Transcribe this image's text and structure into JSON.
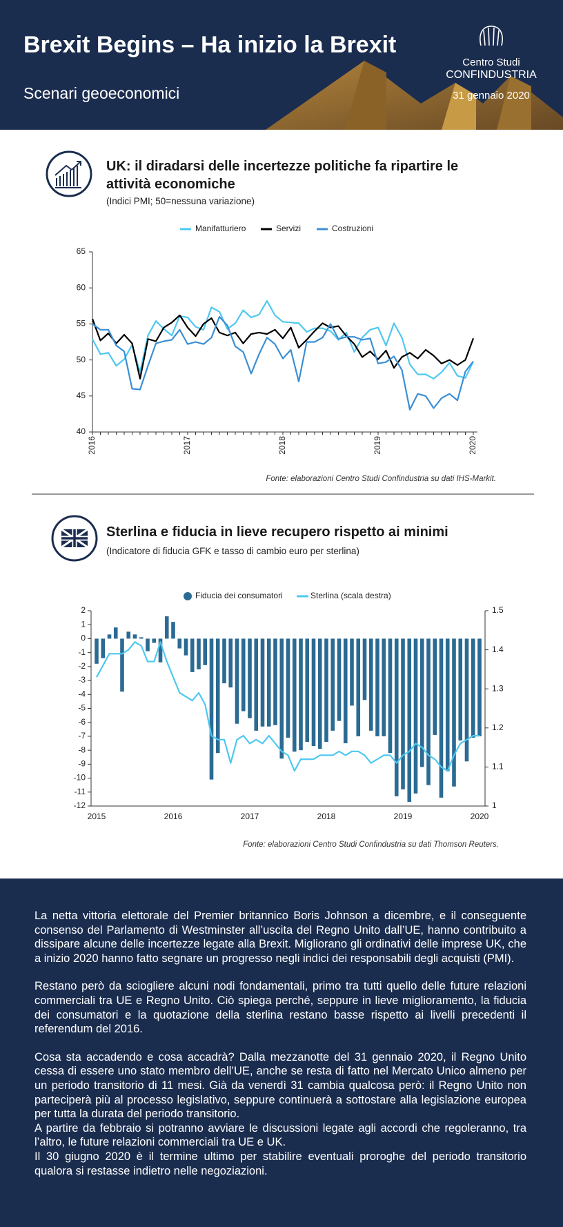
{
  "header": {
    "title": "Brexit Begins – Ha inizio la Brexit",
    "subtitle": "Scenari geoeconomici",
    "logo_line1": "Centro Studi",
    "logo_line2": "CONFINDUSTRIA",
    "date": "31 gennaio 2020"
  },
  "chart_data": [
    {
      "type": "line",
      "title": "UK: il diradarsi delle incertezze politiche fa ripartire le attività economiche",
      "subtitle": "(Indici PMI; 50=nessuna variazione)",
      "source": "Fonte: elaborazioni Centro Studi Confindustria su dati IHS-Markit.",
      "categories": [
        "2016",
        null,
        null,
        null,
        null,
        null,
        null,
        null,
        null,
        null,
        null,
        null,
        "2017",
        null,
        null,
        null,
        null,
        null,
        null,
        null,
        null,
        null,
        null,
        null,
        "2018",
        null,
        null,
        null,
        null,
        null,
        null,
        null,
        null,
        null,
        null,
        null,
        "2019",
        null,
        null,
        null,
        null,
        null,
        null,
        null,
        null,
        null,
        null,
        null,
        "2020"
      ],
      "ylim": [
        40,
        65
      ],
      "yticks": [
        40,
        45,
        50,
        55,
        60,
        65
      ],
      "series": [
        {
          "name": "Manifatturiero",
          "color": "#4fc8ef",
          "values": [
            52.9,
            50.8,
            51.0,
            49.2,
            50.1,
            52.1,
            48.3,
            53.4,
            55.4,
            54.3,
            53.4,
            56.1,
            55.9,
            54.6,
            54.2,
            57.3,
            56.7,
            54.3,
            55.1,
            56.9,
            55.9,
            56.3,
            58.2,
            56.2,
            55.3,
            55.2,
            55.1,
            53.9,
            54.4,
            54.4,
            54.0,
            52.8,
            53.8,
            51.1,
            53.1,
            54.2,
            54.5,
            52.0,
            55.1,
            53.1,
            49.4,
            48.0,
            48.0,
            47.4,
            48.3,
            49.6,
            47.8,
            47.5,
            49.8
          ]
        },
        {
          "name": "Servizi",
          "color": "#000000",
          "values": [
            55.7,
            52.7,
            53.7,
            52.3,
            53.5,
            52.3,
            47.4,
            52.9,
            52.6,
            54.5,
            55.2,
            56.2,
            54.5,
            53.3,
            55.0,
            55.8,
            53.8,
            53.4,
            53.8,
            52.3,
            53.6,
            53.8,
            53.6,
            54.2,
            53.0,
            54.5,
            51.7,
            52.8,
            54.0,
            55.1,
            54.5,
            54.7,
            53.3,
            52.2,
            50.4,
            51.2,
            50.1,
            51.3,
            48.9,
            50.4,
            51.0,
            50.2,
            51.4,
            50.6,
            49.5,
            50.0,
            49.3,
            50.0,
            53.0
          ]
        },
        {
          "name": "Costruzioni",
          "color": "#3b8fd4",
          "values": [
            55.0,
            54.2,
            54.2,
            52.0,
            51.2,
            46.0,
            45.9,
            49.2,
            52.3,
            52.6,
            52.8,
            54.2,
            52.2,
            52.5,
            52.2,
            53.1,
            56.0,
            54.8,
            51.9,
            51.1,
            48.1,
            50.8,
            53.1,
            52.2,
            50.2,
            51.4,
            47.0,
            52.5,
            52.5,
            53.1,
            55.0,
            52.9,
            53.2,
            53.2,
            52.8,
            53.0,
            49.5,
            49.7,
            50.5,
            48.6,
            43.1,
            45.3,
            45.0,
            43.3,
            44.7,
            45.3,
            44.4,
            48.4,
            49.8
          ]
        }
      ]
    },
    {
      "type": "combo",
      "title": "Sterlina e fiducia in lieve recupero rispetto ai minimi",
      "subtitle": "(Indicatore di fiducia GFK e tasso di cambio euro per sterlina)",
      "source": "Fonte: elaborazioni Centro Studi Confindustria su dati Thomson Reuters.",
      "categories": [
        "2015",
        null,
        null,
        null,
        null,
        null,
        null,
        null,
        null,
        null,
        null,
        null,
        "2016",
        null,
        null,
        null,
        null,
        null,
        null,
        null,
        null,
        null,
        null,
        null,
        "2017",
        null,
        null,
        null,
        null,
        null,
        null,
        null,
        null,
        null,
        null,
        null,
        "2018",
        null,
        null,
        null,
        null,
        null,
        null,
        null,
        null,
        null,
        null,
        null,
        "2019",
        null,
        null,
        null,
        null,
        null,
        null,
        null,
        null,
        null,
        null,
        null,
        "2020"
      ],
      "ylim": [
        -12,
        2
      ],
      "yticks": [
        -12,
        -11,
        -10,
        -9,
        -8,
        -7,
        -6,
        -5,
        -4,
        -3,
        -2,
        -1,
        0,
        1,
        2
      ],
      "y2lim": [
        1,
        1.5
      ],
      "y2ticks": [
        1,
        1.1,
        1.2,
        1.3,
        1.4,
        1.5
      ],
      "series": [
        {
          "name": "Fiducia dei consumatori",
          "type": "bar",
          "color": "#2b6a93",
          "values": [
            -1.8,
            -1.4,
            0.3,
            0.8,
            -3.8,
            0.5,
            0.3,
            0.1,
            -0.9,
            -0.3,
            -1.7,
            1.6,
            1.2,
            -0.7,
            -1.2,
            -2.4,
            -2.2,
            -1.9,
            -10.1,
            -8.2,
            -3.2,
            -3.5,
            -6.1,
            -5.2,
            -5.7,
            -6.6,
            -6.3,
            -6.3,
            -6.2,
            -8.6,
            -7.1,
            -8.1,
            -8.0,
            -7.4,
            -7.7,
            -7.9,
            -7.4,
            -6.6,
            -5.9,
            -7.5,
            -4.8,
            -7.0,
            -4.4,
            -6.6,
            -7.0,
            -7.0,
            -8.2,
            -11.3,
            -10.8,
            -11.7,
            -11.1,
            -9.2,
            -10.5,
            -6.9,
            -11.4,
            -9.5,
            -10.6,
            -7.3,
            -8.8,
            -7.1,
            -7.0
          ]
        },
        {
          "name": "Sterlina (scala destra)",
          "type": "line",
          "axis": "y2",
          "color": "#4fc8ef",
          "values": [
            1.33,
            1.36,
            1.39,
            1.39,
            1.39,
            1.4,
            1.42,
            1.41,
            1.37,
            1.37,
            1.42,
            1.37,
            1.33,
            1.29,
            1.28,
            1.27,
            1.29,
            1.26,
            1.18,
            1.17,
            1.17,
            1.11,
            1.17,
            1.18,
            1.16,
            1.17,
            1.16,
            1.18,
            1.16,
            1.14,
            1.13,
            1.09,
            1.12,
            1.12,
            1.12,
            1.13,
            1.13,
            1.13,
            1.14,
            1.13,
            1.14,
            1.14,
            1.13,
            1.11,
            1.12,
            1.13,
            1.13,
            1.11,
            1.13,
            1.14,
            1.16,
            1.15,
            1.13,
            1.12,
            1.1,
            1.09,
            1.13,
            1.16,
            1.17,
            1.18,
            1.18
          ]
        }
      ]
    }
  ],
  "body_text": [
    "La netta vittoria elettorale del Premier britannico Boris Johnson a dicembre, e il conseguente consenso del Parlamento di Westminster all’uscita del Regno Unito dall’UE, hanno contribuito a dissipare alcune delle incertezze legate alla Brexit. Migliorano gli ordinativi delle imprese UK, che a inizio 2020 hanno fatto segnare un progresso negli indici dei responsabili degli acquisti (PMI).",
    "Restano però da sciogliere alcuni nodi fondamentali, primo tra tutti quello delle future relazioni commerciali tra UE e Regno Unito. Ciò spiega perché, seppure in lieve miglioramento, la fiducia dei consumatori e la quotazione della sterlina restano basse rispetto ai livelli precedenti il referendum del 2016.",
    "Cosa sta accadendo e cosa accadrà? Dalla mezzanotte del 31 gennaio 2020, il Regno Unito cessa di essere uno stato membro dell’UE, anche se resta di fatto nel Mercato Unico almeno per un periodo transitorio di 11 mesi. Già da venerdì 31 cambia qualcosa però: il Regno Unito non parteciperà più al processo legislativo, seppure continuerà a sottostare alla legislazione europea per tutta la durata del periodo transitorio.",
    "A partire da febbraio si potranno avviare le discussioni legate agli accordi che regoleranno, tra l’altro, le future relazioni commerciali tra UE e UK.",
    "Il 30 giugno 2020 è il termine ultimo per stabilire eventuali proroghe del periodo transitorio qualora si restasse indietro nelle negoziazioni."
  ]
}
